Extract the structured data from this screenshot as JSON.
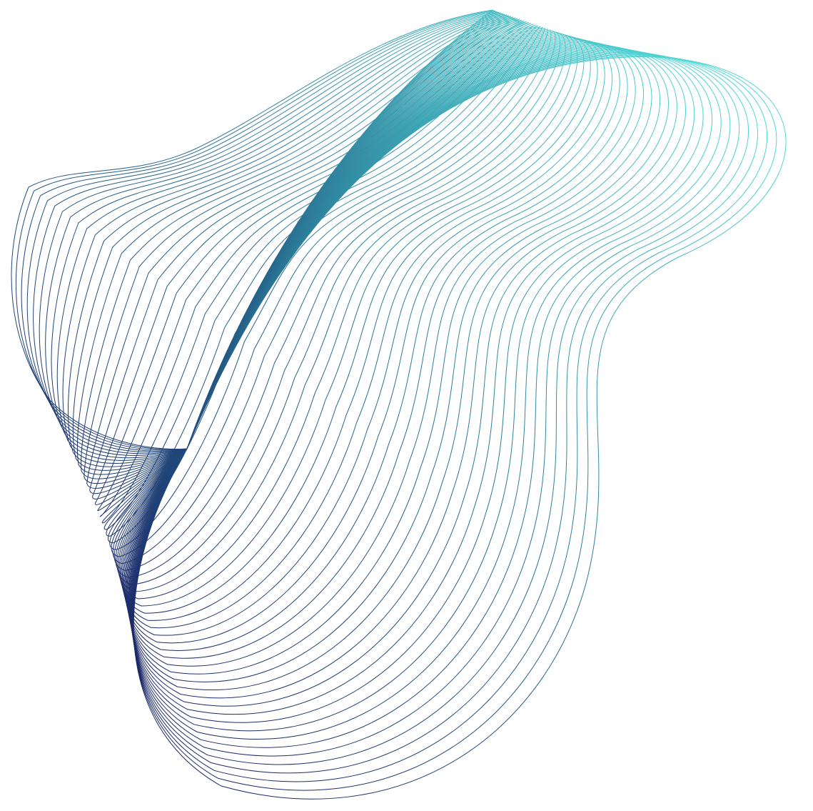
{
  "artwork": {
    "subject": "wave-ribbon-line-art",
    "background_color": "#ffffff",
    "colors": {
      "deep": "#1b2868",
      "mid": "#2c8aa0",
      "light": "#4fd6d6"
    }
  }
}
